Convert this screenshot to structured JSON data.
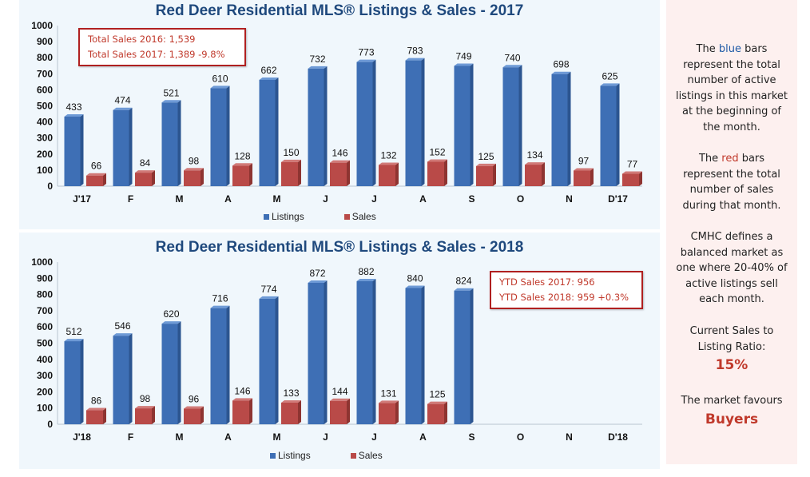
{
  "chart_data": [
    {
      "type": "bar",
      "title": "Red Deer Residential MLS® Listings & Sales - 2017",
      "categories": [
        "J'17",
        "F",
        "M",
        "A",
        "M",
        "J",
        "J",
        "A",
        "S",
        "O",
        "N",
        "D'17"
      ],
      "series": [
        {
          "name": "Listings",
          "color": "#3e6fb5",
          "values": [
            433,
            474,
            521,
            610,
            662,
            732,
            773,
            783,
            749,
            740,
            698,
            625
          ]
        },
        {
          "name": "Sales",
          "color": "#b94a48",
          "values": [
            66,
            84,
            98,
            128,
            150,
            146,
            132,
            152,
            125,
            134,
            97,
            77
          ]
        }
      ],
      "ylim": [
        0,
        1000
      ],
      "yticks": [
        0,
        100,
        200,
        300,
        400,
        500,
        600,
        700,
        800,
        900,
        1000
      ],
      "grid": false,
      "legend_position": "bottom",
      "annotation": [
        "Total Sales 2016: 1,539",
        "Total Sales 2017: 1,389  -9.8%"
      ]
    },
    {
      "type": "bar",
      "title": "Red Deer Residential MLS® Listings & Sales - 2018",
      "categories": [
        "J'18",
        "F",
        "M",
        "A",
        "M",
        "J",
        "J",
        "A",
        "S",
        "O",
        "N",
        "D'18"
      ],
      "series": [
        {
          "name": "Listings",
          "color": "#3e6fb5",
          "values": [
            512,
            546,
            620,
            716,
            774,
            872,
            882,
            840,
            824,
            null,
            null,
            null
          ]
        },
        {
          "name": "Sales",
          "color": "#b94a48",
          "values": [
            86,
            98,
            96,
            146,
            133,
            144,
            131,
            125,
            null,
            null,
            null,
            null
          ]
        }
      ],
      "ylim": [
        0,
        1000
      ],
      "yticks": [
        0,
        100,
        200,
        300,
        400,
        500,
        600,
        700,
        800,
        900,
        1000
      ],
      "grid": false,
      "legend_position": "bottom",
      "annotation": [
        "YTD Sales 2017: 956",
        "YTD Sales 2018: 959  +0.3%"
      ]
    }
  ],
  "sidebar": {
    "p1_pre": "The ",
    "p1_hl": "blue",
    "p1_post": " bars represent the total number of active listings in this market at the beginning of the month.",
    "p2_pre": "The ",
    "p2_hl": "red",
    "p2_post": " bars represent the total number of sales during that month.",
    "p3": "CMHC defines a balanced market as one where 20-40% of active listings sell each month.",
    "ratio_label": "Current Sales to Listing Ratio:",
    "ratio_value": "15%",
    "market_label": "The market favours",
    "market_value": "Buyers"
  }
}
